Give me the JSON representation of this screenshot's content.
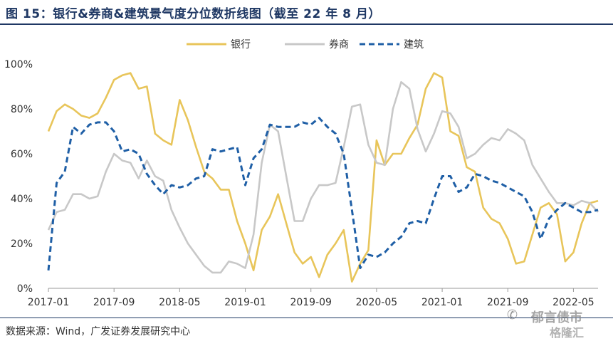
{
  "title": "图 15：银行&券商&建筑景气度分位数折线图（截至 22 年 8 月）",
  "source": "数据来源：Wind，广发证券发展研究中心",
  "watermark": {
    "icon": "wechat-icon",
    "name": "郁言债市",
    "logo": "格隆汇"
  },
  "chart_data": {
    "type": "line",
    "title": "",
    "xlabel": "",
    "ylabel": "",
    "ylim": [
      0,
      100
    ],
    "y_ticks": [
      "0%",
      "20%",
      "40%",
      "60%",
      "80%",
      "100%"
    ],
    "x_tick_labels": [
      "2017-01",
      "2017-09",
      "2018-05",
      "2019-01",
      "2019-09",
      "2020-05",
      "2021-01",
      "2021-09",
      "2022-05"
    ],
    "grid": false,
    "legend": "top-center",
    "x_start": "2017-01",
    "x_end": "2022-08",
    "series": [
      {
        "name": "银行",
        "color": "#e8c55a",
        "style": "solid",
        "points": [
          [
            "2017-01",
            70
          ],
          [
            "2017-02",
            79
          ],
          [
            "2017-03",
            82
          ],
          [
            "2017-04",
            80
          ],
          [
            "2017-05",
            77
          ],
          [
            "2017-06",
            76
          ],
          [
            "2017-07",
            78
          ],
          [
            "2017-08",
            85
          ],
          [
            "2017-09",
            93
          ],
          [
            "2017-10",
            95
          ],
          [
            "2017-11",
            96
          ],
          [
            "2017-12",
            89
          ],
          [
            "2018-01",
            90
          ],
          [
            "2018-02",
            69
          ],
          [
            "2018-03",
            66
          ],
          [
            "2018-04",
            64
          ],
          [
            "2018-05",
            84
          ],
          [
            "2018-06",
            75
          ],
          [
            "2018-07",
            63
          ],
          [
            "2018-08",
            52
          ],
          [
            "2018-09",
            49
          ],
          [
            "2018-10",
            44
          ],
          [
            "2018-11",
            44
          ],
          [
            "2018-12",
            30
          ],
          [
            "2019-01",
            20
          ],
          [
            "2019-02",
            8
          ],
          [
            "2019-03",
            26
          ],
          [
            "2019-04",
            32
          ],
          [
            "2019-05",
            42
          ],
          [
            "2019-06",
            29
          ],
          [
            "2019-07",
            16
          ],
          [
            "2019-08",
            11
          ],
          [
            "2019-09",
            14
          ],
          [
            "2019-10",
            5
          ],
          [
            "2019-11",
            15
          ],
          [
            "2019-12",
            20
          ],
          [
            "2020-01",
            26
          ],
          [
            "2020-02",
            3
          ],
          [
            "2020-03",
            11
          ],
          [
            "2020-04",
            17
          ],
          [
            "2020-05",
            66
          ],
          [
            "2020-06",
            55
          ],
          [
            "2020-07",
            60
          ],
          [
            "2020-08",
            60
          ],
          [
            "2020-09",
            67
          ],
          [
            "2020-10",
            73
          ],
          [
            "2020-11",
            89
          ],
          [
            "2020-12",
            96
          ],
          [
            "2021-01",
            94
          ],
          [
            "2021-02",
            70
          ],
          [
            "2021-03",
            68
          ],
          [
            "2021-04",
            54
          ],
          [
            "2021-05",
            52
          ],
          [
            "2021-06",
            36
          ],
          [
            "2021-07",
            31
          ],
          [
            "2021-08",
            29
          ],
          [
            "2021-09",
            22
          ],
          [
            "2021-10",
            11
          ],
          [
            "2021-11",
            12
          ],
          [
            "2021-12",
            24
          ],
          [
            "2022-01",
            36
          ],
          [
            "2022-02",
            38
          ],
          [
            "2022-03",
            33
          ],
          [
            "2022-04",
            12
          ],
          [
            "2022-05",
            16
          ],
          [
            "2022-06",
            29
          ],
          [
            "2022-07",
            38
          ],
          [
            "2022-08",
            39
          ]
        ]
      },
      {
        "name": "券商",
        "color": "#c8c8c8",
        "style": "solid",
        "points": [
          [
            "2017-01",
            26
          ],
          [
            "2017-02",
            34
          ],
          [
            "2017-03",
            35
          ],
          [
            "2017-04",
            42
          ],
          [
            "2017-05",
            42
          ],
          [
            "2017-06",
            40
          ],
          [
            "2017-07",
            41
          ],
          [
            "2017-08",
            52
          ],
          [
            "2017-09",
            60
          ],
          [
            "2017-10",
            57
          ],
          [
            "2017-11",
            56
          ],
          [
            "2017-12",
            49
          ],
          [
            "2018-01",
            57
          ],
          [
            "2018-02",
            50
          ],
          [
            "2018-03",
            48
          ],
          [
            "2018-04",
            35
          ],
          [
            "2018-05",
            27
          ],
          [
            "2018-06",
            20
          ],
          [
            "2018-07",
            15
          ],
          [
            "2018-08",
            10
          ],
          [
            "2018-09",
            7
          ],
          [
            "2018-10",
            7
          ],
          [
            "2018-11",
            12
          ],
          [
            "2018-12",
            11
          ],
          [
            "2019-01",
            9
          ],
          [
            "2019-02",
            24
          ],
          [
            "2019-03",
            56
          ],
          [
            "2019-04",
            73
          ],
          [
            "2019-05",
            70
          ],
          [
            "2019-06",
            50
          ],
          [
            "2019-07",
            30
          ],
          [
            "2019-08",
            30
          ],
          [
            "2019-09",
            40
          ],
          [
            "2019-10",
            46
          ],
          [
            "2019-11",
            46
          ],
          [
            "2019-12",
            47
          ],
          [
            "2020-01",
            63
          ],
          [
            "2020-02",
            81
          ],
          [
            "2020-03",
            82
          ],
          [
            "2020-04",
            64
          ],
          [
            "2020-05",
            56
          ],
          [
            "2020-06",
            55
          ],
          [
            "2020-07",
            80
          ],
          [
            "2020-08",
            92
          ],
          [
            "2020-09",
            89
          ],
          [
            "2020-10",
            71
          ],
          [
            "2020-11",
            61
          ],
          [
            "2020-12",
            69
          ],
          [
            "2021-01",
            79
          ],
          [
            "2021-02",
            78
          ],
          [
            "2021-03",
            72
          ],
          [
            "2021-04",
            58
          ],
          [
            "2021-05",
            60
          ],
          [
            "2021-06",
            64
          ],
          [
            "2021-07",
            67
          ],
          [
            "2021-08",
            66
          ],
          [
            "2021-09",
            71
          ],
          [
            "2021-10",
            69
          ],
          [
            "2021-11",
            66
          ],
          [
            "2021-12",
            55
          ],
          [
            "2022-01",
            49
          ],
          [
            "2022-02",
            43
          ],
          [
            "2022-03",
            38
          ],
          [
            "2022-04",
            38
          ],
          [
            "2022-05",
            37
          ],
          [
            "2022-06",
            39
          ],
          [
            "2022-07",
            38
          ],
          [
            "2022-08",
            34
          ]
        ]
      },
      {
        "name": "建筑",
        "color": "#1f5fa6",
        "style": "dashed",
        "points": [
          [
            "2017-01",
            8
          ],
          [
            "2017-02",
            47
          ],
          [
            "2017-03",
            52
          ],
          [
            "2017-04",
            72
          ],
          [
            "2017-05",
            69
          ],
          [
            "2017-06",
            73
          ],
          [
            "2017-07",
            74
          ],
          [
            "2017-08",
            74
          ],
          [
            "2017-09",
            70
          ],
          [
            "2017-10",
            61
          ],
          [
            "2017-11",
            62
          ],
          [
            "2017-12",
            60
          ],
          [
            "2018-01",
            51
          ],
          [
            "2018-02",
            46
          ],
          [
            "2018-03",
            42
          ],
          [
            "2018-04",
            46
          ],
          [
            "2018-05",
            45
          ],
          [
            "2018-06",
            46
          ],
          [
            "2018-07",
            49
          ],
          [
            "2018-08",
            50
          ],
          [
            "2018-09",
            62
          ],
          [
            "2018-10",
            61
          ],
          [
            "2018-11",
            62
          ],
          [
            "2018-12",
            63
          ],
          [
            "2019-01",
            46
          ],
          [
            "2019-02",
            58
          ],
          [
            "2019-03",
            62
          ],
          [
            "2019-04",
            73
          ],
          [
            "2019-05",
            72
          ],
          [
            "2019-06",
            72
          ],
          [
            "2019-07",
            72
          ],
          [
            "2019-08",
            74
          ],
          [
            "2019-09",
            73
          ],
          [
            "2019-10",
            76
          ],
          [
            "2019-11",
            72
          ],
          [
            "2019-12",
            69
          ],
          [
            "2020-01",
            60
          ],
          [
            "2020-02",
            35
          ],
          [
            "2020-03",
            9
          ],
          [
            "2020-04",
            15
          ],
          [
            "2020-05",
            14
          ],
          [
            "2020-06",
            16
          ],
          [
            "2020-07",
            20
          ],
          [
            "2020-08",
            23
          ],
          [
            "2020-09",
            29
          ],
          [
            "2020-10",
            30
          ],
          [
            "2020-11",
            29
          ],
          [
            "2020-12",
            40
          ],
          [
            "2021-01",
            50
          ],
          [
            "2021-02",
            50
          ],
          [
            "2021-03",
            43
          ],
          [
            "2021-04",
            45
          ],
          [
            "2021-05",
            51
          ],
          [
            "2021-06",
            50
          ],
          [
            "2021-07",
            48
          ],
          [
            "2021-08",
            47
          ],
          [
            "2021-09",
            45
          ],
          [
            "2021-10",
            43
          ],
          [
            "2021-11",
            41
          ],
          [
            "2021-12",
            34
          ],
          [
            "2022-01",
            22
          ],
          [
            "2022-02",
            31
          ],
          [
            "2022-03",
            35
          ],
          [
            "2022-04",
            38
          ],
          [
            "2022-05",
            36
          ],
          [
            "2022-06",
            34
          ],
          [
            "2022-07",
            34
          ],
          [
            "2022-08",
            35
          ]
        ]
      }
    ]
  }
}
